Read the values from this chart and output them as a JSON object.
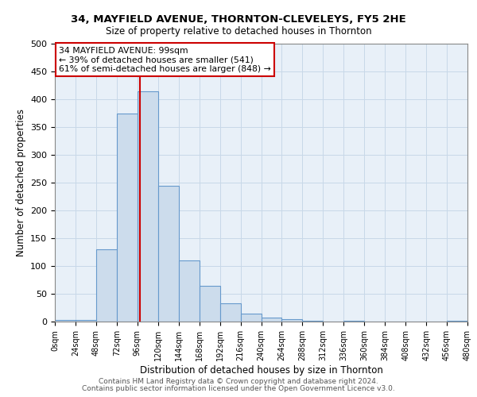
{
  "title": "34, MAYFIELD AVENUE, THORNTON-CLEVELEYS, FY5 2HE",
  "subtitle": "Size of property relative to detached houses in Thornton",
  "xlabel": "Distribution of detached houses by size in Thornton",
  "ylabel": "Number of detached properties",
  "bar_left_edges": [
    0,
    24,
    48,
    72,
    96,
    120,
    144,
    168,
    192,
    216,
    240,
    264,
    288,
    312,
    336,
    360,
    384,
    408,
    432,
    456
  ],
  "bar_heights": [
    3,
    3,
    130,
    375,
    415,
    245,
    110,
    65,
    33,
    15,
    7,
    5,
    2,
    0,
    2,
    0,
    0,
    0,
    0,
    2
  ],
  "bin_width": 24,
  "bar_color": "#ccdcec",
  "bar_edgecolor": "#6699cc",
  "vline_x": 99,
  "vline_color": "#cc0000",
  "annotation_title": "34 MAYFIELD AVENUE: 99sqm",
  "annotation_line1": "← 39% of detached houses are smaller (541)",
  "annotation_line2": "61% of semi-detached houses are larger (848) →",
  "annotation_box_color": "#cc0000",
  "xlim": [
    0,
    480
  ],
  "ylim": [
    0,
    500
  ],
  "xtick_values": [
    0,
    24,
    48,
    72,
    96,
    120,
    144,
    168,
    192,
    216,
    240,
    264,
    288,
    312,
    336,
    360,
    384,
    408,
    432,
    456,
    480
  ],
  "xtick_labels": [
    "0sqm",
    "24sqm",
    "48sqm",
    "72sqm",
    "96sqm",
    "120sqm",
    "144sqm",
    "168sqm",
    "192sqm",
    "216sqm",
    "240sqm",
    "264sqm",
    "288sqm",
    "312sqm",
    "336sqm",
    "360sqm",
    "384sqm",
    "408sqm",
    "432sqm",
    "456sqm",
    "480sqm"
  ],
  "ytick_values": [
    0,
    50,
    100,
    150,
    200,
    250,
    300,
    350,
    400,
    450,
    500
  ],
  "grid_color": "#c8d8e8",
  "bg_color": "#e8f0f8",
  "footer1": "Contains HM Land Registry data © Crown copyright and database right 2024.",
  "footer2": "Contains public sector information licensed under the Open Government Licence v3.0."
}
